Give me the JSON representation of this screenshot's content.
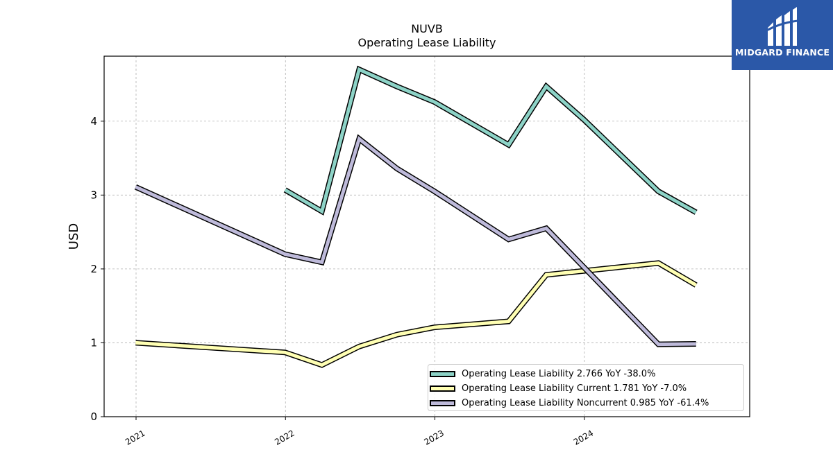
{
  "logo": {
    "text": "MIDGARD FINANCE",
    "background": "#2b58a8"
  },
  "chart_data": {
    "type": "line",
    "title": "NUVB",
    "subtitle": "Operating Lease Liability",
    "xlabel": "",
    "ylabel": "USD",
    "xlim": [
      "2020-10-15",
      "2025-02-08"
    ],
    "ylim": [
      0,
      4.88
    ],
    "x_ticks": [
      "2021",
      "2022",
      "2023",
      "2024"
    ],
    "y_ticks": [
      "0",
      "1",
      "2",
      "3",
      "4"
    ],
    "grid": true,
    "legend_position": "lower-right",
    "series": [
      {
        "name": "Operating Lease Liability",
        "legend_label": "Operating Lease Liability  2.766 YoY -38.0%",
        "color": "#8dd3c7",
        "points": [
          [
            "2021-12-31",
            3.07
          ],
          [
            "2022-03-31",
            2.78
          ],
          [
            "2022-06-30",
            4.7
          ],
          [
            "2022-09-30",
            4.47
          ],
          [
            "2022-12-31",
            4.26
          ],
          [
            "2023-06-30",
            3.68
          ],
          [
            "2023-09-30",
            4.47
          ],
          [
            "2023-12-31",
            4.02
          ],
          [
            "2024-06-30",
            3.05
          ],
          [
            "2024-09-30",
            2.766
          ]
        ]
      },
      {
        "name": "Operating Lease Liability Current",
        "legend_label": "Operating Lease Liability Current  1.781 YoY -7.0%",
        "color": "#ffffb3",
        "points": [
          [
            "2020-12-31",
            1.0
          ],
          [
            "2021-12-31",
            0.87
          ],
          [
            "2022-03-31",
            0.7
          ],
          [
            "2022-06-30",
            0.95
          ],
          [
            "2022-09-30",
            1.11
          ],
          [
            "2022-12-31",
            1.21
          ],
          [
            "2023-06-30",
            1.29
          ],
          [
            "2023-09-30",
            1.92
          ],
          [
            "2024-06-30",
            2.08
          ],
          [
            "2024-09-30",
            1.781
          ]
        ]
      },
      {
        "name": "Operating Lease Liability Noncurrent",
        "legend_label": "Operating Lease Liability Noncurrent  0.985 YoY -61.4%",
        "color": "#bebada",
        "points": [
          [
            "2020-12-31",
            3.11
          ],
          [
            "2021-12-31",
            2.2
          ],
          [
            "2022-03-31",
            2.09
          ],
          [
            "2022-06-30",
            3.76
          ],
          [
            "2022-09-30",
            3.36
          ],
          [
            "2022-12-31",
            3.05
          ],
          [
            "2023-06-30",
            2.4
          ],
          [
            "2023-09-30",
            2.55
          ],
          [
            "2024-06-30",
            0.98
          ],
          [
            "2024-09-30",
            0.985
          ]
        ]
      }
    ]
  }
}
